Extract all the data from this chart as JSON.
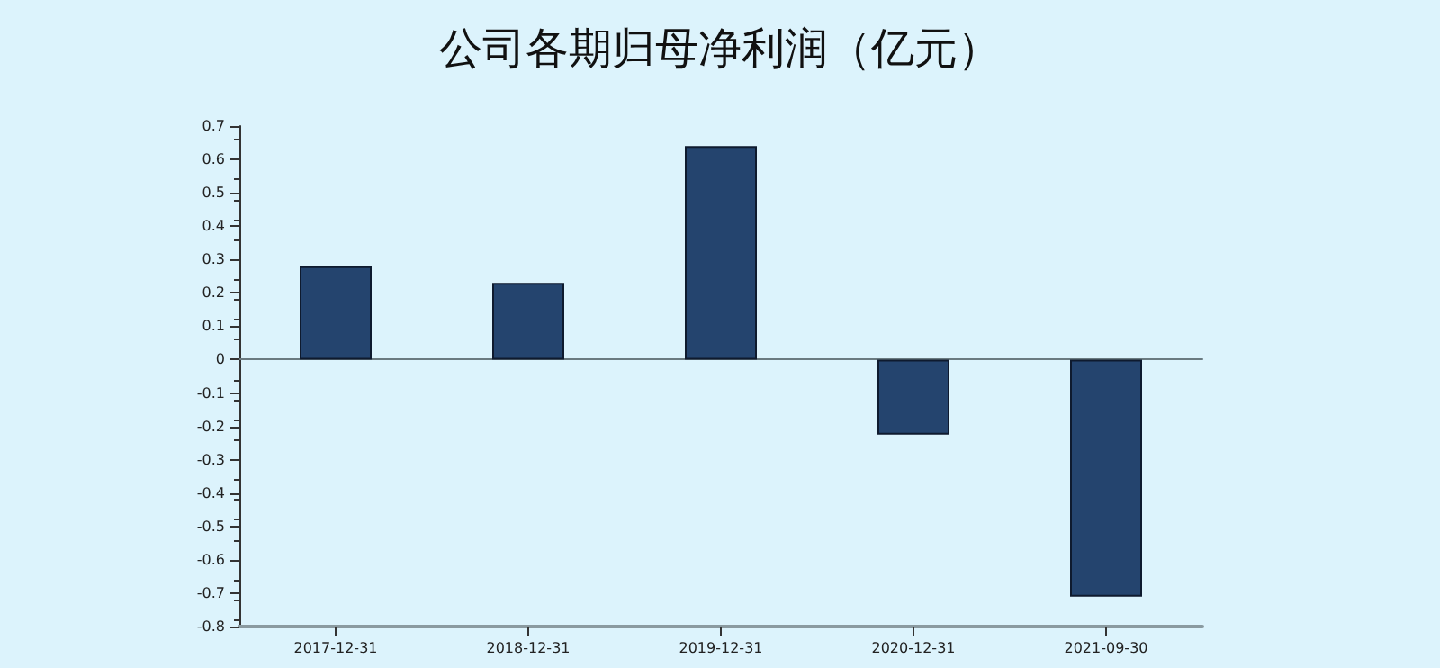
{
  "chart_data": {
    "type": "bar",
    "title": "公司各期归母净利润（亿元）",
    "categories": [
      "2017-12-31",
      "2018-12-31",
      "2019-12-31",
      "2020-12-31",
      "2021-09-30"
    ],
    "values": [
      0.28,
      0.23,
      0.64,
      -0.225,
      -0.71
    ],
    "color": "#24446e",
    "ylim": [
      -0.8,
      0.7
    ],
    "yticks": [
      -0.8,
      -0.7,
      -0.6,
      -0.5,
      -0.4,
      -0.3,
      -0.2,
      -0.1,
      0,
      0.1,
      0.2,
      0.3,
      0.4,
      0.5,
      0.6,
      0.7
    ],
    "data_labels": false
  }
}
